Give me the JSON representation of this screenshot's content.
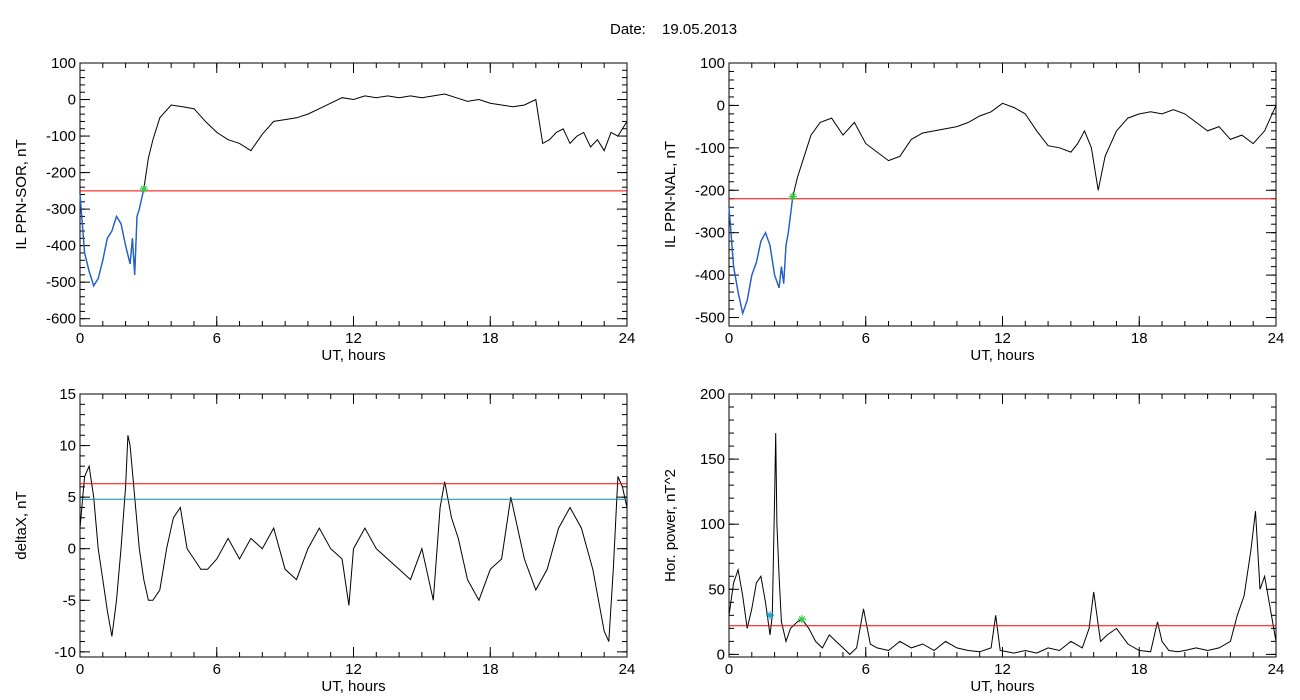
{
  "header": {
    "date_label": "Date:",
    "date_value": "19.05.2013"
  },
  "colors": {
    "red_line": "#ff0000",
    "blue_trace": "#1f5fd0",
    "cyan_line": "#0a8aa0",
    "green_marker": "#2ecc40",
    "cyan_marker": "#1aa6c8"
  },
  "chart_data": [
    {
      "type": "line",
      "title": "",
      "xlabel": "UT, hours",
      "ylabel": "IL PPN-SOR, nT",
      "xlim": [
        0,
        24
      ],
      "ylim": [
        -620,
        100
      ],
      "xticks": [
        0,
        6,
        12,
        18,
        24
      ],
      "yticks": [
        -600,
        -500,
        -400,
        -300,
        -200,
        -100,
        0,
        100
      ],
      "threshold": -250,
      "marker": {
        "x": 2.8,
        "y": -245,
        "color": "green"
      },
      "blue_segment_until": 2.8,
      "series": [
        {
          "x": [
            0,
            0.2,
            0.4,
            0.6,
            0.8,
            1.0,
            1.2,
            1.4,
            1.6,
            1.8,
            2.0,
            2.2,
            2.3,
            2.4,
            2.5,
            2.6,
            2.8,
            3.0,
            3.2,
            3.5,
            4.0,
            4.5,
            5.0,
            5.5,
            6.0,
            6.5,
            7.0,
            7.5,
            8.0,
            8.5,
            9.0,
            9.5,
            10.0,
            10.5,
            11.0,
            11.5,
            12.0,
            12.5,
            13.0,
            13.5,
            14.0,
            14.5,
            15.0,
            15.5,
            16.0,
            16.5,
            17.0,
            17.5,
            18.0,
            18.5,
            19.0,
            19.5,
            20.0,
            20.3,
            20.6,
            20.9,
            21.2,
            21.5,
            21.8,
            22.1,
            22.4,
            22.7,
            23.0,
            23.3,
            23.6,
            24.0
          ],
          "y": [
            -260,
            -420,
            -470,
            -510,
            -490,
            -440,
            -380,
            -360,
            -320,
            -340,
            -400,
            -450,
            -380,
            -480,
            -320,
            -300,
            -245,
            -160,
            -110,
            -50,
            -15,
            -20,
            -25,
            -60,
            -90,
            -110,
            -120,
            -140,
            -95,
            -60,
            -55,
            -50,
            -40,
            -25,
            -10,
            5,
            0,
            10,
            5,
            10,
            5,
            10,
            5,
            10,
            15,
            5,
            -5,
            0,
            -10,
            -15,
            -20,
            -15,
            0,
            -120,
            -110,
            -90,
            -80,
            -120,
            -100,
            -90,
            -130,
            -110,
            -140,
            -90,
            -100,
            -60
          ]
        }
      ]
    },
    {
      "type": "line",
      "title": "",
      "xlabel": "UT, hours",
      "ylabel": "IL PPN-NAL, nT",
      "xlim": [
        0,
        24
      ],
      "ylim": [
        -520,
        100
      ],
      "xticks": [
        0,
        6,
        12,
        18,
        24
      ],
      "yticks": [
        -500,
        -400,
        -300,
        -200,
        -100,
        0,
        100
      ],
      "threshold": -220,
      "marker": {
        "x": 2.8,
        "y": -215,
        "color": "green"
      },
      "blue_segment_until": 2.8,
      "series": [
        {
          "x": [
            0,
            0.2,
            0.4,
            0.6,
            0.8,
            1.0,
            1.2,
            1.4,
            1.6,
            1.8,
            2.0,
            2.2,
            2.3,
            2.4,
            2.5,
            2.6,
            2.8,
            3.0,
            3.3,
            3.6,
            4.0,
            4.5,
            5.0,
            5.5,
            6.0,
            6.5,
            7.0,
            7.5,
            8.0,
            8.5,
            9.0,
            9.5,
            10.0,
            10.5,
            11.0,
            11.5,
            12.0,
            12.5,
            13.0,
            13.5,
            14.0,
            14.5,
            15.0,
            15.3,
            15.6,
            15.9,
            16.2,
            16.5,
            17.0,
            17.5,
            18.0,
            18.5,
            19.0,
            19.5,
            20.0,
            20.5,
            21.0,
            21.5,
            22.0,
            22.5,
            23.0,
            23.5,
            24.0
          ],
          "y": [
            -240,
            -380,
            -440,
            -490,
            -460,
            -400,
            -370,
            -320,
            -300,
            -330,
            -400,
            -430,
            -380,
            -420,
            -330,
            -300,
            -215,
            -170,
            -120,
            -70,
            -40,
            -30,
            -70,
            -40,
            -90,
            -110,
            -130,
            -120,
            -80,
            -65,
            -60,
            -55,
            -50,
            -40,
            -25,
            -15,
            5,
            -5,
            -20,
            -60,
            -95,
            -100,
            -110,
            -90,
            -60,
            -100,
            -200,
            -120,
            -60,
            -30,
            -20,
            -15,
            -20,
            -10,
            -20,
            -40,
            -60,
            -50,
            -80,
            -70,
            -90,
            -60,
            0
          ]
        }
      ]
    },
    {
      "type": "line",
      "title": "",
      "xlabel": "UT, hours",
      "ylabel": "deltaX, nT",
      "xlim": [
        0,
        24
      ],
      "ylim": [
        -10.5,
        15
      ],
      "xticks": [
        0,
        6,
        12,
        18,
        24
      ],
      "yticks": [
        -10,
        -5,
        0,
        5,
        10,
        15
      ],
      "threshold": 6.3,
      "threshold2": 4.8,
      "series": [
        {
          "x": [
            0,
            0.2,
            0.4,
            0.6,
            0.8,
            1.0,
            1.2,
            1.4,
            1.6,
            1.8,
            2.0,
            2.1,
            2.2,
            2.4,
            2.6,
            2.8,
            3.0,
            3.2,
            3.5,
            3.8,
            4.1,
            4.4,
            4.7,
            5.0,
            5.3,
            5.6,
            6.0,
            6.5,
            7.0,
            7.5,
            8.0,
            8.5,
            9.0,
            9.5,
            10.0,
            10.5,
            11.0,
            11.5,
            11.8,
            12.0,
            12.5,
            13.0,
            13.5,
            14.0,
            14.5,
            15.0,
            15.5,
            15.8,
            16.0,
            16.3,
            16.6,
            17.0,
            17.5,
            18.0,
            18.5,
            18.9,
            19.2,
            19.5,
            20.0,
            20.5,
            21.0,
            21.5,
            22.0,
            22.5,
            23.0,
            23.2,
            23.4,
            23.6,
            23.8,
            24.0
          ],
          "y": [
            2,
            7,
            8,
            5,
            0,
            -3,
            -6,
            -8.5,
            -5,
            0,
            6,
            11,
            10,
            5,
            0,
            -3,
            -5,
            -5,
            -4,
            0,
            3,
            4,
            0,
            -1,
            -2,
            -2,
            -1,
            1,
            -1,
            1,
            0,
            2,
            -2,
            -3,
            0,
            2,
            0,
            -1,
            -5.5,
            0,
            2,
            0,
            -1,
            -2,
            -3,
            0,
            -5,
            4,
            6.5,
            3,
            1,
            -3,
            -5,
            -2,
            -1,
            5,
            2,
            -1,
            -4,
            -2,
            2,
            4,
            2,
            -2,
            -8,
            -9,
            -2,
            7,
            6,
            4
          ]
        }
      ]
    },
    {
      "type": "line",
      "title": "",
      "xlabel": "UT, hours",
      "ylabel": "Hor. power, nT^2",
      "xlim": [
        0,
        24
      ],
      "ylim": [
        -2,
        200
      ],
      "xticks": [
        0,
        6,
        12,
        18,
        24
      ],
      "yticks": [
        0,
        50,
        100,
        150,
        200
      ],
      "threshold": 22,
      "markers": [
        {
          "x": 1.8,
          "y": 30,
          "color": "cyan"
        },
        {
          "x": 3.2,
          "y": 27,
          "color": "green"
        }
      ],
      "series": [
        {
          "x": [
            0,
            0.2,
            0.4,
            0.6,
            0.8,
            1.0,
            1.2,
            1.4,
            1.6,
            1.8,
            1.9,
            2.0,
            2.05,
            2.1,
            2.2,
            2.3,
            2.5,
            2.7,
            3.0,
            3.2,
            3.5,
            3.8,
            4.1,
            4.4,
            4.7,
            5.0,
            5.3,
            5.6,
            5.9,
            6.2,
            6.5,
            7.0,
            7.5,
            8.0,
            8.5,
            9.0,
            9.5,
            10.0,
            10.5,
            11.0,
            11.5,
            11.7,
            11.9,
            12.2,
            12.5,
            13.0,
            13.5,
            14.0,
            14.5,
            15.0,
            15.5,
            15.8,
            16.0,
            16.3,
            16.6,
            17.0,
            17.5,
            18.0,
            18.5,
            18.8,
            19.0,
            19.3,
            19.7,
            20.0,
            20.5,
            21.0,
            21.5,
            22.0,
            22.3,
            22.6,
            22.9,
            23.1,
            23.3,
            23.5,
            23.7,
            24.0
          ],
          "y": [
            30,
            55,
            65,
            45,
            20,
            35,
            55,
            60,
            40,
            15,
            30,
            120,
            170,
            100,
            60,
            25,
            10,
            20,
            25,
            27,
            20,
            10,
            5,
            15,
            10,
            5,
            0,
            5,
            35,
            8,
            5,
            3,
            10,
            5,
            8,
            3,
            10,
            5,
            3,
            2,
            5,
            30,
            3,
            2,
            1,
            3,
            1,
            5,
            3,
            10,
            5,
            20,
            48,
            10,
            15,
            20,
            8,
            3,
            2,
            25,
            10,
            3,
            2,
            3,
            5,
            3,
            5,
            10,
            30,
            45,
            80,
            110,
            50,
            60,
            40,
            10
          ]
        }
      ]
    }
  ]
}
